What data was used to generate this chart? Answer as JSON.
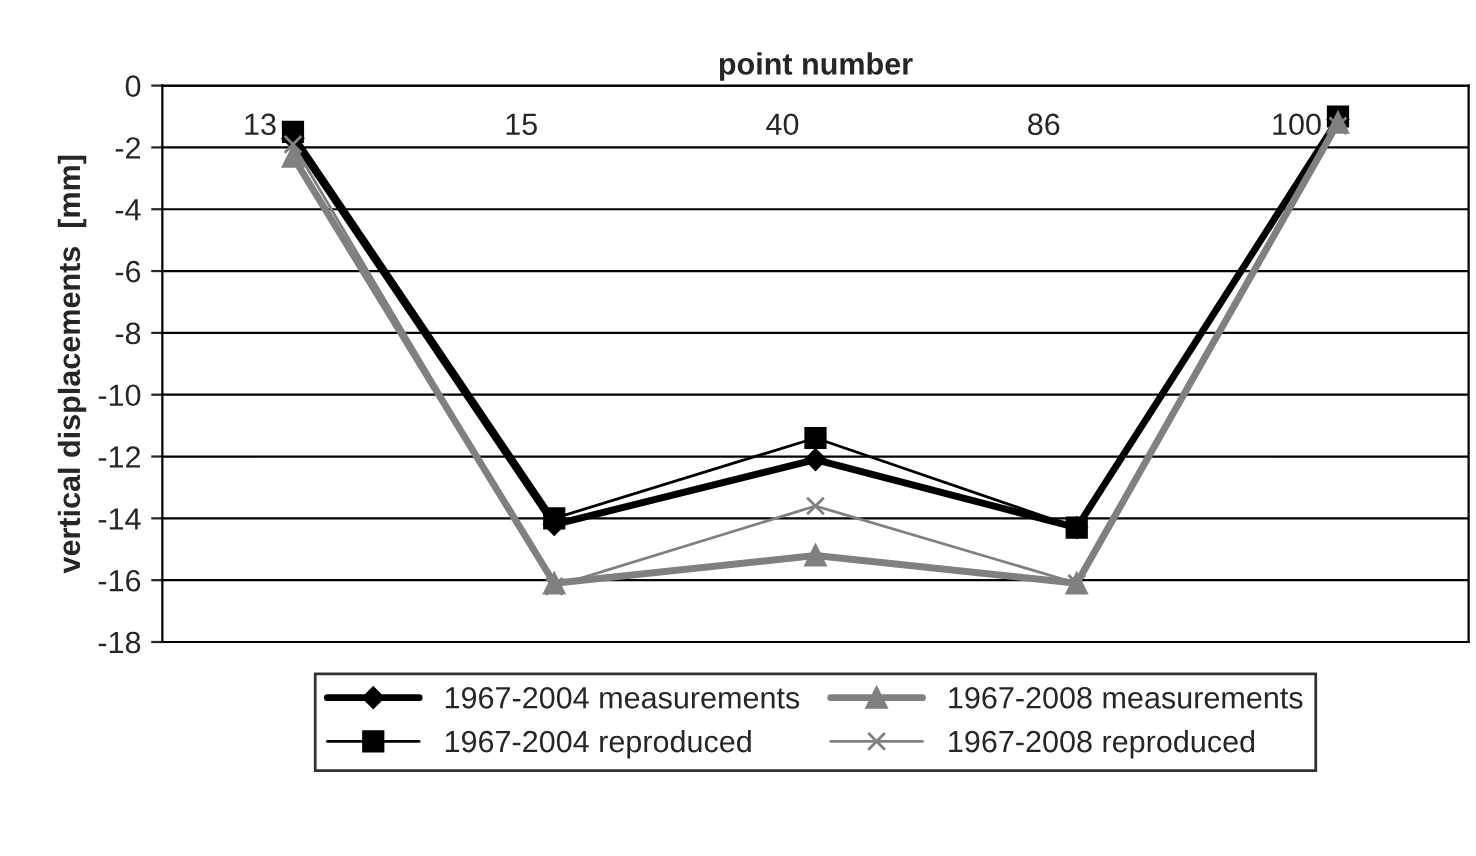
{
  "chart_data": {
    "type": "line",
    "xlabel": "point number",
    "ylabel": "vertical displacements  [mm]",
    "categories": [
      "13",
      "15",
      "40",
      "86",
      "100"
    ],
    "series": [
      {
        "name": "1967-2004 measurements",
        "color": "#000000",
        "marker": "diamond",
        "values": [
          -1.7,
          -14.2,
          -12.1,
          -14.3,
          -1.1
        ]
      },
      {
        "name": "1967-2004 reproduced",
        "color": "#000000",
        "marker": "square",
        "values": [
          -1.5,
          -14.0,
          -11.4,
          -14.3,
          -1.0
        ]
      },
      {
        "name": "1967-2008 measurements",
        "color": "#808080",
        "marker": "triangle",
        "values": [
          -2.3,
          -16.1,
          -15.2,
          -16.1,
          -1.2
        ]
      },
      {
        "name": "1967-2008 reproduced",
        "color": "#808080",
        "marker": "cross",
        "values": [
          -1.9,
          -16.2,
          -13.6,
          -16.1,
          -1.3
        ]
      }
    ],
    "ylim": [
      -18,
      0
    ],
    "yticks": [
      -18,
      -16,
      -14,
      -12,
      -10,
      -8,
      -6,
      -4,
      -2,
      0
    ],
    "grid": "y",
    "legend": "bottom"
  }
}
